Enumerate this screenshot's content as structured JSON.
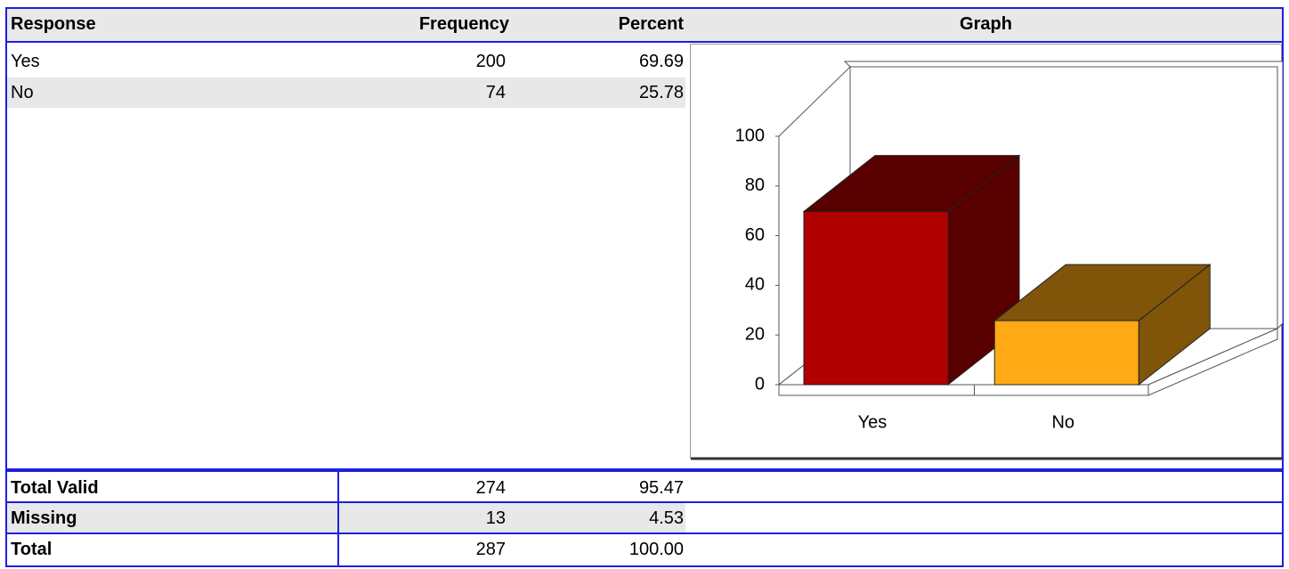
{
  "table": {
    "header": [
      "Response",
      "Frequency",
      "Percent",
      "Graph"
    ],
    "rows": [
      [
        "Yes",
        "200",
        "69.69"
      ],
      [
        "No",
        "74",
        "25.78"
      ]
    ],
    "totals": [
      [
        "Total Valid",
        "274",
        "95.47"
      ],
      [
        "Missing",
        "13",
        "4.53"
      ],
      [
        "Total",
        "287",
        "100.00"
      ]
    ]
  },
  "chart_data": {
    "type": "bar3d",
    "categories": [
      "Yes",
      "No"
    ],
    "values": [
      69.69,
      25.78
    ],
    "colors": [
      "#b00000",
      "#ffa914"
    ],
    "ylim": [
      0,
      100
    ],
    "yticks": [
      0,
      20,
      40,
      60,
      80,
      100
    ]
  }
}
